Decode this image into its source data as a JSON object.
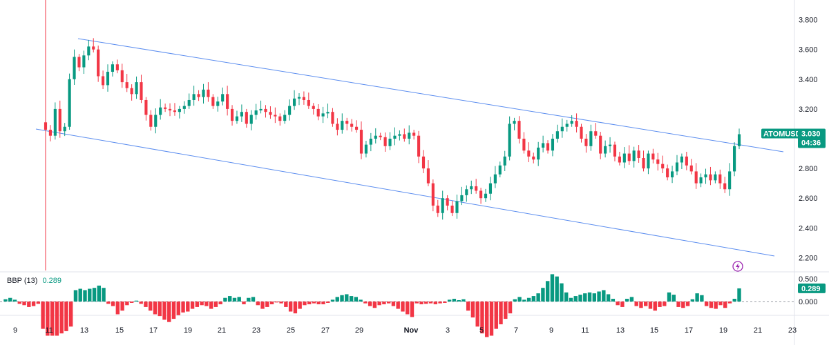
{
  "chart_data": [
    {
      "type": "candlestick",
      "symbol": "ATOMUSDT",
      "last_price": "3.030",
      "countdown": "04:36",
      "price_ticks": [
        "3.800",
        "3.600",
        "3.400",
        "3.200",
        "2.800",
        "2.600",
        "2.400",
        "2.200"
      ],
      "ylim": [
        2.2,
        3.8
      ],
      "x_ticks": [
        "9",
        "11",
        "13",
        "15",
        "17",
        "19",
        "21",
        "23",
        "25",
        "27",
        "29",
        "Nov",
        "3",
        "5",
        "7",
        "9",
        "11",
        "13",
        "15",
        "17",
        "19",
        "21",
        "23"
      ],
      "colors": {
        "up": "#089981",
        "down": "#f23645",
        "channel": "#5b8def",
        "axis_text": "#131722"
      },
      "channel_lines": [
        {
          "start": [
            "Oct 12",
            3.69
          ],
          "end": [
            "Nov 22",
            2.91
          ]
        },
        {
          "start": [
            "Oct 9",
            3.06
          ],
          "end": [
            "Nov 22",
            2.21
          ]
        }
      ],
      "closes": [
        3.06,
        3.02,
        3.2,
        3.05,
        3.08,
        3.4,
        3.55,
        3.48,
        3.56,
        3.62,
        3.6,
        3.42,
        3.36,
        3.45,
        3.5,
        3.46,
        3.38,
        3.34,
        3.3,
        3.38,
        3.26,
        3.16,
        3.08,
        3.16,
        3.21,
        3.2,
        3.19,
        3.18,
        3.2,
        3.22,
        3.26,
        3.3,
        3.28,
        3.33,
        3.28,
        3.22,
        3.25,
        3.3,
        3.2,
        3.12,
        3.15,
        3.18,
        3.1,
        3.16,
        3.19,
        3.2,
        3.18,
        3.16,
        3.15,
        3.12,
        3.16,
        3.22,
        3.27,
        3.28,
        3.26,
        3.22,
        3.2,
        3.15,
        3.17,
        3.18,
        3.1,
        3.06,
        3.12,
        3.1,
        3.08,
        3.06,
        2.9,
        2.96,
        3.0,
        3.02,
        3.01,
        2.95,
        3.0,
        3.02,
        3.03,
        3.0,
        3.04,
        3.02,
        2.88,
        2.8,
        2.7,
        2.55,
        2.5,
        2.6,
        2.55,
        2.5,
        2.58,
        2.62,
        2.66,
        2.68,
        2.65,
        2.6,
        2.63,
        2.7,
        2.76,
        2.82,
        2.88,
        3.1,
        3.12,
        3.0,
        2.92,
        2.88,
        2.86,
        2.94,
        2.97,
        2.92,
        3.0,
        3.05,
        3.08,
        3.1,
        3.12,
        3.08,
        3.0,
        2.95,
        3.05,
        3.02,
        2.9,
        2.95,
        2.96,
        2.88,
        2.84,
        2.9,
        2.85,
        2.92,
        2.87,
        2.8,
        2.9,
        2.86,
        2.83,
        2.8,
        2.74,
        2.78,
        2.84,
        2.88,
        2.82,
        2.78,
        2.7,
        2.74,
        2.76,
        2.72,
        2.76,
        2.7,
        2.66,
        2.78,
        2.95,
        3.03
      ]
    },
    {
      "type": "histogram",
      "indicator": "BBP (13)",
      "current_value": "0.289",
      "y_ticks": [
        "0.500",
        "0.000"
      ],
      "ylim": [
        -0.8,
        0.6
      ],
      "values": [
        0.05,
        0.08,
        0.04,
        -0.05,
        -0.08,
        -0.12,
        -0.1,
        -0.05,
        -0.6,
        -0.75,
        -0.75,
        -0.75,
        -0.7,
        -0.65,
        -0.55,
        0.25,
        0.28,
        0.25,
        0.28,
        0.3,
        0.35,
        0.3,
        -0.05,
        -0.1,
        -0.28,
        -0.2,
        -0.08,
        -0.03,
        0.02,
        -0.05,
        -0.12,
        -0.2,
        -0.28,
        -0.32,
        -0.4,
        -0.45,
        -0.38,
        -0.3,
        -0.24,
        -0.22,
        -0.16,
        -0.12,
        -0.08,
        -0.1,
        -0.16,
        -0.12,
        -0.06,
        0.08,
        0.12,
        0.08,
        0.1,
        -0.06,
        0.08,
        0.1,
        -0.08,
        -0.16,
        -0.12,
        -0.06,
        -0.02,
        -0.04,
        -0.12,
        -0.22,
        -0.26,
        -0.16,
        -0.08,
        -0.06,
        -0.04,
        -0.06,
        -0.06,
        -0.03,
        0.04,
        0.1,
        0.14,
        0.16,
        0.12,
        0.1,
        0.04,
        -0.04,
        -0.1,
        -0.14,
        -0.08,
        -0.06,
        -0.04,
        -0.1,
        -0.16,
        -0.22,
        -0.28,
        -0.34,
        -0.04,
        -0.06,
        -0.05,
        -0.04,
        -0.06,
        -0.04,
        -0.03,
        0.04,
        0.06,
        0.03,
        0.05,
        -0.2,
        -0.35,
        -0.55,
        -0.7,
        -0.78,
        -0.75,
        -0.6,
        -0.5,
        -0.38,
        -0.26,
        0.05,
        0.1,
        0.04,
        0.08,
        0.12,
        0.18,
        0.3,
        0.45,
        0.6,
        0.55,
        0.4,
        0.2,
        0.08,
        0.12,
        0.15,
        0.18,
        0.2,
        0.18,
        0.22,
        0.25,
        0.16,
        0.06,
        -0.08,
        -0.12,
        0.06,
        0.1,
        -0.1,
        -0.14,
        -0.1,
        -0.16,
        -0.2,
        -0.12,
        -0.1,
        0.2,
        0.15,
        -0.12,
        -0.14,
        -0.1,
        0.05,
        0.18,
        0.14,
        -0.1,
        -0.14,
        -0.16,
        -0.08,
        -0.14,
        -0.04,
        0.06,
        0.289
      ]
    }
  ]
}
